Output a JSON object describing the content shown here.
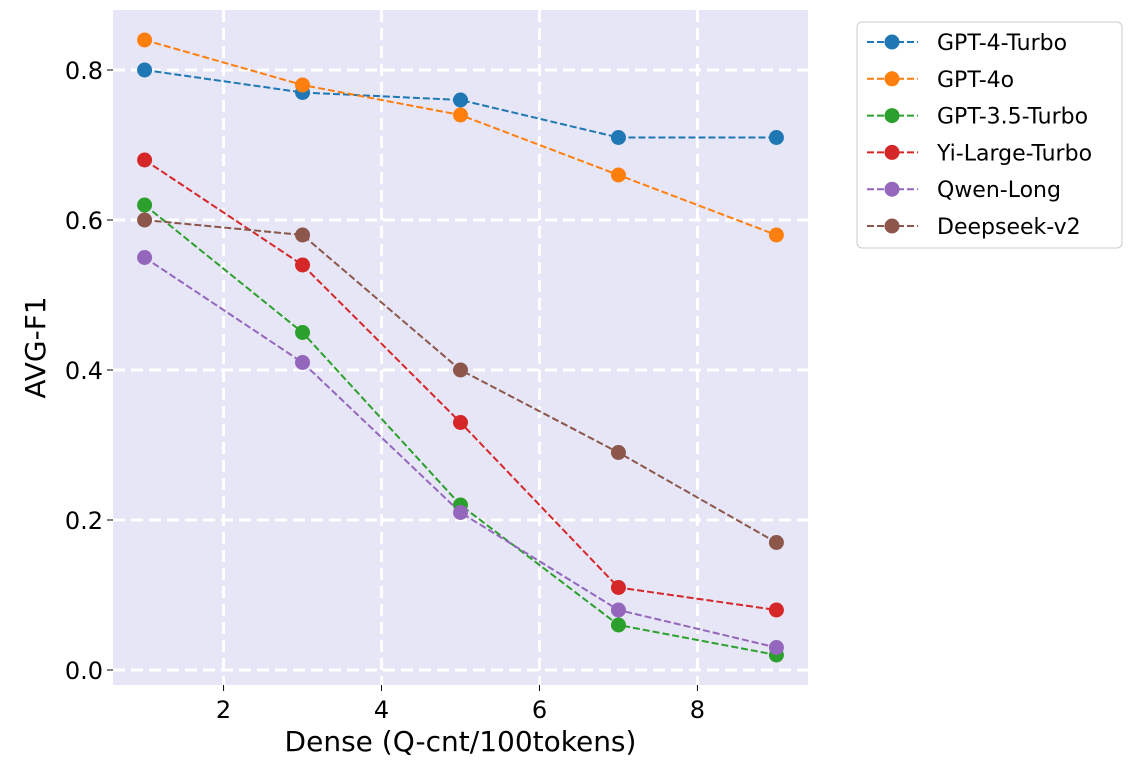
{
  "chart_data": {
    "type": "line",
    "title": "",
    "xlabel": "Dense (Q-cnt/100tokens)",
    "ylabel": "AVG-F1",
    "x": [
      1,
      3,
      5,
      7,
      9
    ],
    "xlim": [
      0.6,
      9.4
    ],
    "ylim": [
      -0.02,
      0.88
    ],
    "xticks": [
      2,
      4,
      6,
      8
    ],
    "yticks": [
      0.0,
      0.2,
      0.4,
      0.6,
      0.8
    ],
    "xtick_labels": [
      "2",
      "4",
      "6",
      "8"
    ],
    "ytick_labels": [
      "0.0",
      "0.2",
      "0.4",
      "0.6",
      "0.8"
    ],
    "grid": true,
    "legend_position": "outside-top-right",
    "colors": {
      "plot_background": "#e6e6f7",
      "grid": "#ffffff"
    },
    "series": [
      {
        "name": "GPT-4-Turbo",
        "color": "#1f77b4",
        "values": [
          0.8,
          0.77,
          0.76,
          0.71,
          0.71
        ]
      },
      {
        "name": "GPT-4o",
        "color": "#ff7f0e",
        "values": [
          0.84,
          0.78,
          0.74,
          0.66,
          0.58
        ]
      },
      {
        "name": "GPT-3.5-Turbo",
        "color": "#2ca02c",
        "values": [
          0.62,
          0.45,
          0.22,
          0.06,
          0.02
        ]
      },
      {
        "name": "Yi-Large-Turbo",
        "color": "#d62728",
        "values": [
          0.68,
          0.54,
          0.33,
          0.11,
          0.08
        ]
      },
      {
        "name": "Qwen-Long",
        "color": "#9467bd",
        "values": [
          0.55,
          0.41,
          0.21,
          0.08,
          0.03
        ]
      },
      {
        "name": "Deepseek-v2",
        "color": "#8c564b",
        "values": [
          0.6,
          0.58,
          0.4,
          0.29,
          0.17
        ]
      }
    ]
  }
}
